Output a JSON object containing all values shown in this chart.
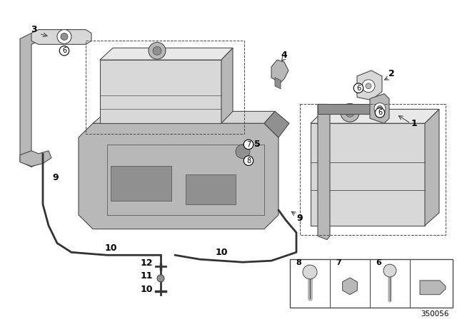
{
  "bg_color": "#ffffff",
  "lc": "#4a4a4a",
  "lc_dark": "#333333",
  "gray_light": "#d8d8d8",
  "gray_mid": "#b8b8b8",
  "gray_dark": "#909090",
  "gray_very_dark": "#707070",
  "diagram_id": "350056",
  "figw": 6.4,
  "figh": 4.48,
  "dpi": 100
}
